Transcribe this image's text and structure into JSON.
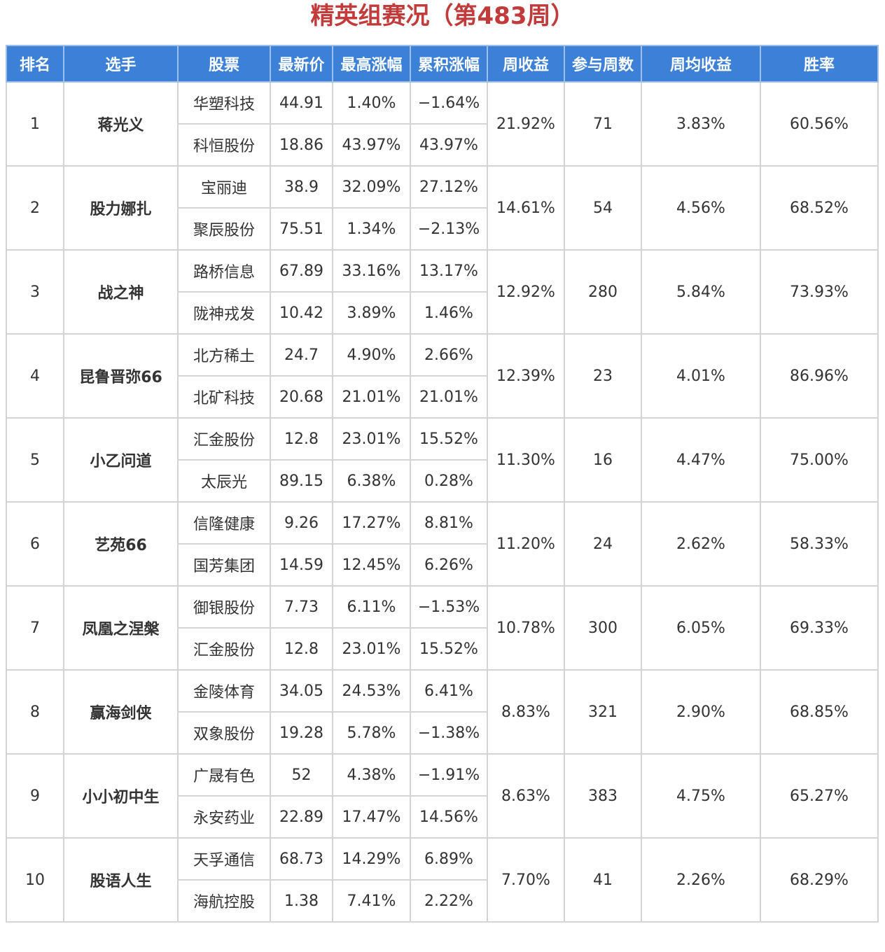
{
  "title": "精英组赛况（第483周）",
  "colors": {
    "up": "#d43a3a",
    "down": "#3e8a35",
    "header_bg": "#3c80d7",
    "title": "#c23a3a",
    "link": "#2f62b8"
  },
  "headers": [
    "排名",
    "选手",
    "股票",
    "最新价",
    "最高涨幅",
    "累积涨幅",
    "周收益",
    "参与周数",
    "周均收益",
    "胜率"
  ],
  "rows": [
    {
      "rank": "1",
      "player": "蒋光义",
      "weekly_return": "21.92%",
      "weeks": "71",
      "avg_return": "3.83%",
      "win_rate": "60.56%",
      "stocks": [
        {
          "name": "华塑科技",
          "price": "44.91",
          "max_gain": "1.40%",
          "cum_gain": "−1.64%"
        },
        {
          "name": "科恒股份",
          "price": "18.86",
          "max_gain": "43.97%",
          "cum_gain": "43.97%"
        }
      ]
    },
    {
      "rank": "2",
      "player": "股力娜扎",
      "weekly_return": "14.61%",
      "weeks": "54",
      "avg_return": "4.56%",
      "win_rate": "68.52%",
      "stocks": [
        {
          "name": "宝丽迪",
          "price": "38.9",
          "max_gain": "32.09%",
          "cum_gain": "27.12%"
        },
        {
          "name": "聚辰股份",
          "price": "75.51",
          "max_gain": "1.34%",
          "cum_gain": "−2.13%"
        }
      ]
    },
    {
      "rank": "3",
      "player": "战之神",
      "weekly_return": "12.92%",
      "weeks": "280",
      "avg_return": "5.84%",
      "win_rate": "73.93%",
      "stocks": [
        {
          "name": "路桥信息",
          "price": "67.89",
          "max_gain": "33.16%",
          "cum_gain": "13.17%"
        },
        {
          "name": "陇神戎发",
          "price": "10.42",
          "max_gain": "3.89%",
          "cum_gain": "1.46%"
        }
      ]
    },
    {
      "rank": "4",
      "player": "昆鲁晋弥66",
      "weekly_return": "12.39%",
      "weeks": "23",
      "avg_return": "4.01%",
      "win_rate": "86.96%",
      "stocks": [
        {
          "name": "北方稀土",
          "price": "24.7",
          "max_gain": "4.90%",
          "cum_gain": "2.66%"
        },
        {
          "name": "北矿科技",
          "price": "20.68",
          "max_gain": "21.01%",
          "cum_gain": "21.01%"
        }
      ]
    },
    {
      "rank": "5",
      "player": "小乙问道",
      "weekly_return": "11.30%",
      "weeks": "16",
      "avg_return": "4.47%",
      "win_rate": "75.00%",
      "stocks": [
        {
          "name": "汇金股份",
          "price": "12.8",
          "max_gain": "23.01%",
          "cum_gain": "15.52%"
        },
        {
          "name": "太辰光",
          "price": "89.15",
          "max_gain": "6.38%",
          "cum_gain": "0.28%"
        }
      ]
    },
    {
      "rank": "6",
      "player": "艺苑66",
      "weekly_return": "11.20%",
      "weeks": "24",
      "avg_return": "2.62%",
      "win_rate": "58.33%",
      "stocks": [
        {
          "name": "信隆健康",
          "price": "9.26",
          "max_gain": "17.27%",
          "cum_gain": "8.81%"
        },
        {
          "name": "国芳集团",
          "price": "14.59",
          "max_gain": "12.45%",
          "cum_gain": "6.26%"
        }
      ]
    },
    {
      "rank": "7",
      "player": "凤凰之涅槃",
      "weekly_return": "10.78%",
      "weeks": "300",
      "avg_return": "6.05%",
      "win_rate": "69.33%",
      "stocks": [
        {
          "name": "御银股份",
          "price": "7.73",
          "max_gain": "6.11%",
          "cum_gain": "−1.53%"
        },
        {
          "name": "汇金股份",
          "price": "12.8",
          "max_gain": "23.01%",
          "cum_gain": "15.52%"
        }
      ]
    },
    {
      "rank": "8",
      "player": "赢海剑侠",
      "weekly_return": "8.83%",
      "weeks": "321",
      "avg_return": "2.90%",
      "win_rate": "68.85%",
      "stocks": [
        {
          "name": "金陵体育",
          "price": "34.05",
          "max_gain": "24.53%",
          "cum_gain": "6.41%"
        },
        {
          "name": "双象股份",
          "price": "19.28",
          "max_gain": "5.78%",
          "cum_gain": "−1.38%"
        }
      ]
    },
    {
      "rank": "9",
      "player": "小小初中生",
      "weekly_return": "8.63%",
      "weeks": "383",
      "avg_return": "4.75%",
      "win_rate": "65.27%",
      "stocks": [
        {
          "name": "广晟有色",
          "price": "52",
          "max_gain": "4.38%",
          "cum_gain": "−1.91%"
        },
        {
          "name": "永安药业",
          "price": "22.89",
          "max_gain": "17.47%",
          "cum_gain": "14.56%"
        }
      ]
    },
    {
      "rank": "10",
      "player": "股语人生",
      "weekly_return": "7.70%",
      "weeks": "41",
      "avg_return": "2.26%",
      "win_rate": "68.29%",
      "stocks": [
        {
          "name": "天孚通信",
          "price": "68.73",
          "max_gain": "14.29%",
          "cum_gain": "6.89%"
        },
        {
          "name": "海航控股",
          "price": "1.38",
          "max_gain": "7.41%",
          "cum_gain": "2.22%"
        }
      ]
    }
  ]
}
